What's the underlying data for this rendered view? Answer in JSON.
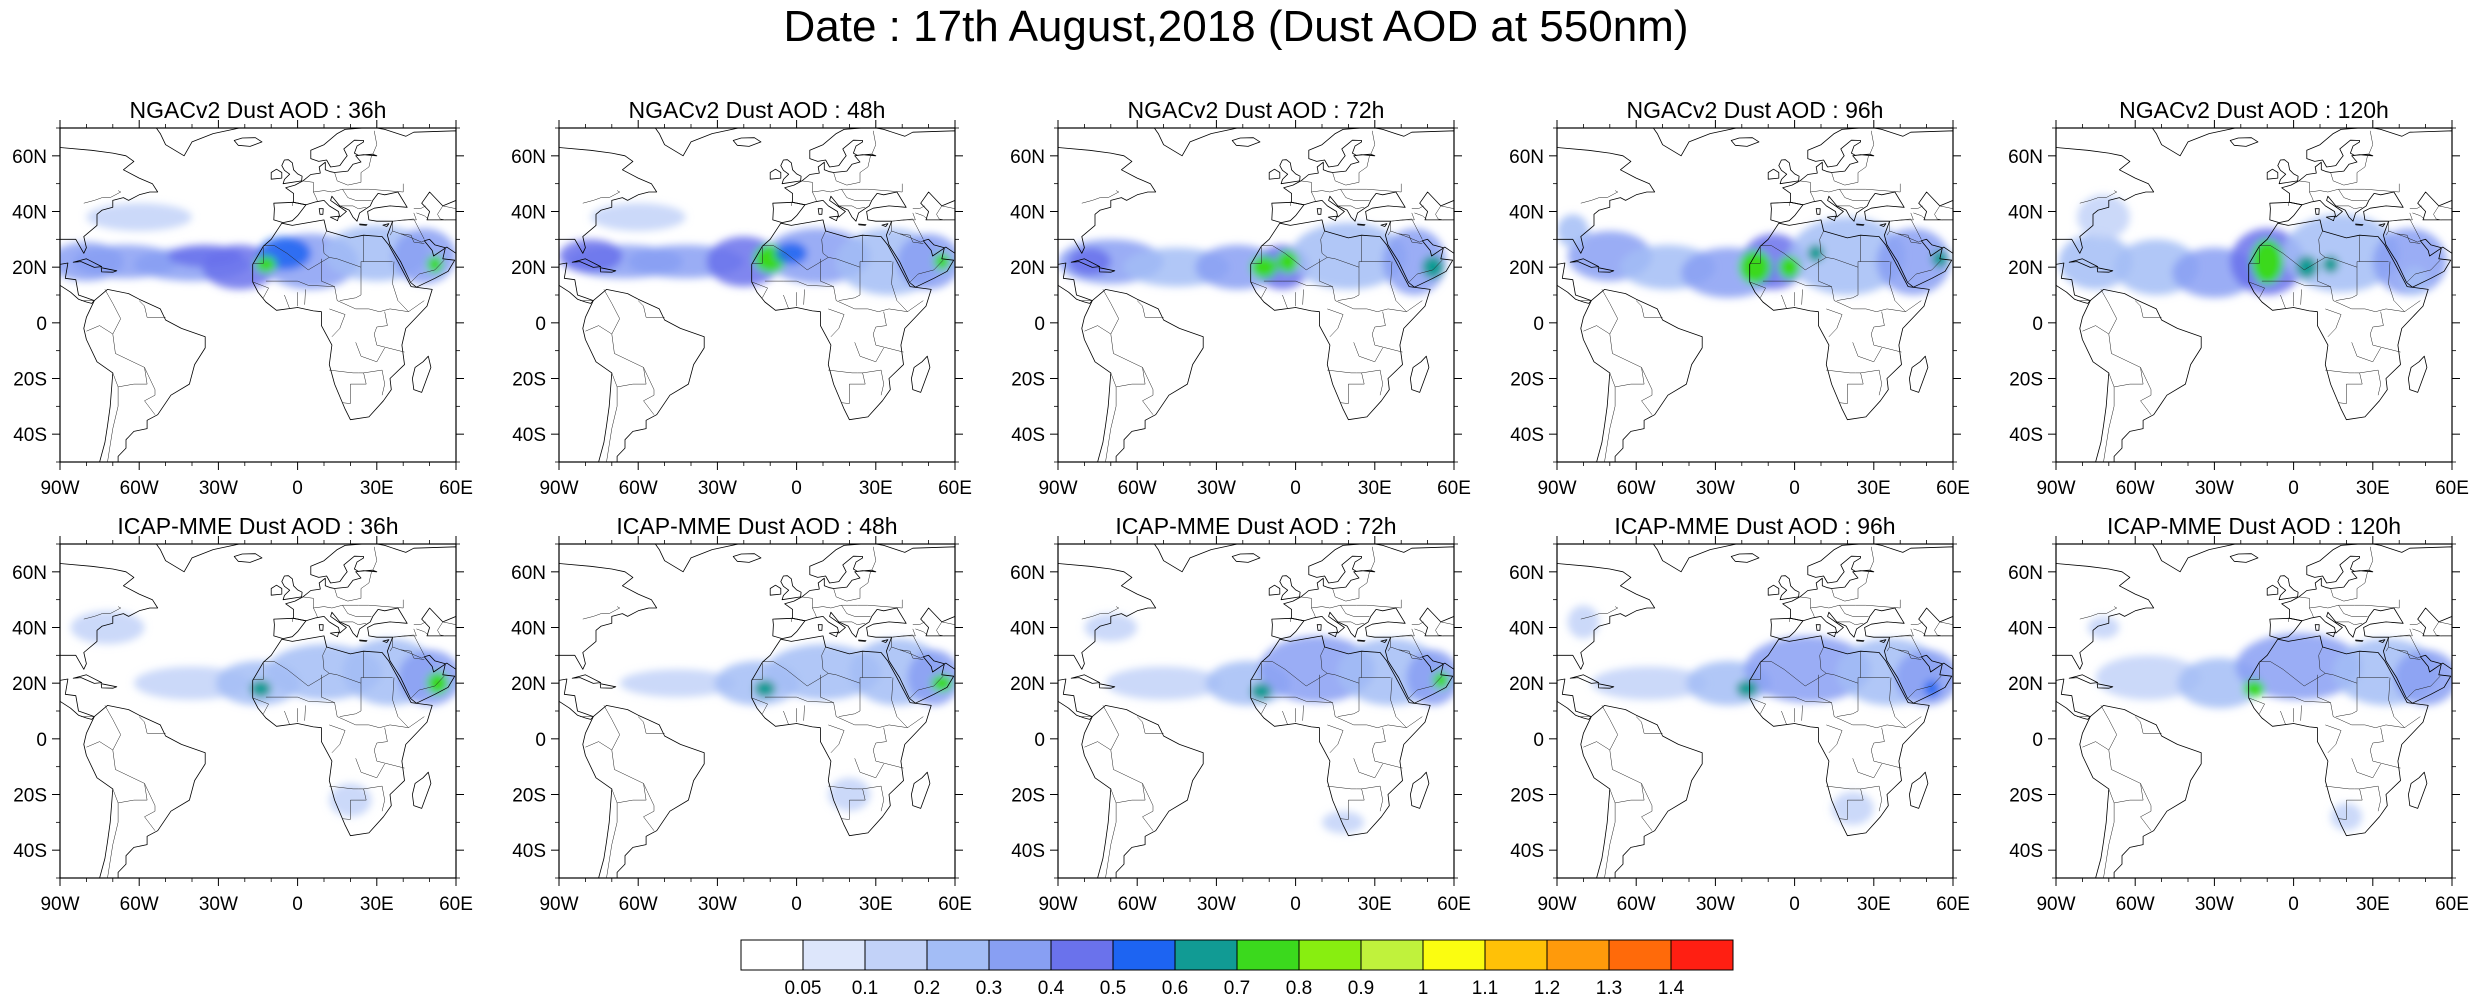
{
  "title": "Date : 17th August,2018 (Dust AOD at 550nm)",
  "panels": [
    {
      "title": "NGACv2 Dust AOD : 36h",
      "model": "NGACv2",
      "lead": "36h"
    },
    {
      "title": "NGACv2 Dust AOD : 48h",
      "model": "NGACv2",
      "lead": "48h"
    },
    {
      "title": "NGACv2 Dust AOD : 72h",
      "model": "NGACv2",
      "lead": "72h"
    },
    {
      "title": "NGACv2 Dust AOD : 96h",
      "model": "NGACv2",
      "lead": "96h"
    },
    {
      "title": "NGACv2 Dust AOD : 120h",
      "model": "NGACv2",
      "lead": "120h"
    },
    {
      "title": "ICAP-MME Dust AOD : 36h",
      "model": "ICAP-MME",
      "lead": "36h"
    },
    {
      "title": "ICAP-MME Dust AOD : 48h",
      "model": "ICAP-MME",
      "lead": "48h"
    },
    {
      "title": "ICAP-MME Dust AOD : 72h",
      "model": "ICAP-MME",
      "lead": "72h"
    },
    {
      "title": "ICAP-MME Dust AOD : 96h",
      "model": "ICAP-MME",
      "lead": "96h"
    },
    {
      "title": "ICAP-MME Dust AOD : 120h",
      "model": "ICAP-MME",
      "lead": "120h"
    }
  ],
  "map": {
    "lon_range": [
      -90,
      60
    ],
    "lat_range": [
      -50,
      70
    ],
    "lon_ticks": [
      {
        "value": -90,
        "label": "90W"
      },
      {
        "value": -60,
        "label": "60W"
      },
      {
        "value": -30,
        "label": "30W"
      },
      {
        "value": 0,
        "label": "0"
      },
      {
        "value": 30,
        "label": "30E"
      },
      {
        "value": 60,
        "label": "60E"
      }
    ],
    "lat_ticks": [
      {
        "value": 60,
        "label": "60N"
      },
      {
        "value": 40,
        "label": "40N"
      },
      {
        "value": 20,
        "label": "20N"
      },
      {
        "value": 0,
        "label": "0"
      },
      {
        "value": -20,
        "label": "20S"
      },
      {
        "value": -40,
        "label": "40S"
      }
    ]
  },
  "colorbar": {
    "labels": [
      "0.05",
      "0.1",
      "0.2",
      "0.3",
      "0.4",
      "0.5",
      "0.6",
      "0.7",
      "0.8",
      "0.9",
      "1",
      "1.1",
      "1.2",
      "1.3",
      "1.4"
    ],
    "colors": [
      "#ffffff",
      "#dde6fb",
      "#c2d2f8",
      "#a3bdf6",
      "#889ff3",
      "#6a72ec",
      "#1d64f2",
      "#119b94",
      "#3bd91d",
      "#88ee10",
      "#c0f23c",
      "#fbfd10",
      "#ffc107",
      "#ff9a0b",
      "#ff6a0a",
      "#ff1f12"
    ]
  }
}
